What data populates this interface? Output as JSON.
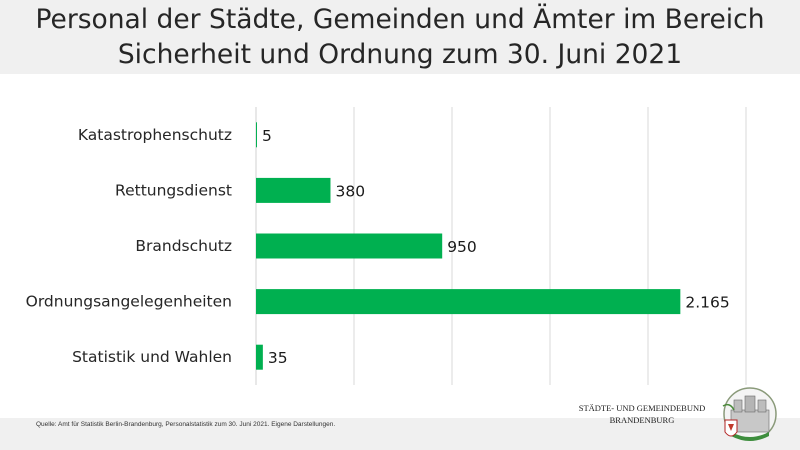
{
  "header": {
    "title_line1": "Personal der Städte, Gemeinden und Ämter im Bereich",
    "title_line2": "Sicherheit und Ordnung zum 30. Juni 2021"
  },
  "chart_data": {
    "type": "bar",
    "orientation": "horizontal",
    "categories": [
      "Katastrophenschutz",
      "Rettungsdienst",
      "Brandschutz",
      "Ordnungsangelegenheiten",
      "Statistik und Wahlen"
    ],
    "values": [
      5,
      380,
      950,
      2165,
      35
    ],
    "value_labels": [
      "5",
      "380",
      "950",
      "2.165",
      "35"
    ],
    "xlim": [
      0,
      2500
    ],
    "grid": true,
    "bar_color": "#00b050"
  },
  "footer": {
    "source": "Quelle: Amt für Statistik Berlin-Brandenburg, Personalstatistik zum 30. Juni 2021. Eigene Darstellungen.",
    "org_line1": "STÄDTE- UND GEMEINDEBUND",
    "org_line2": "BRANDENBURG"
  },
  "colors": {
    "header_bg": "#f0f0f0",
    "bar": "#00b050",
    "grid": "#d9d9d9"
  }
}
